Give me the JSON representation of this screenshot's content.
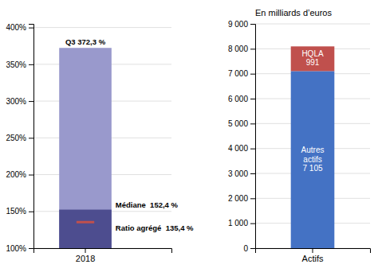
{
  "chart_data": [
    {
      "type": "bar",
      "categories": [
        "2018"
      ],
      "ylim": [
        100,
        405
      ],
      "yticks": [
        {
          "value": 100,
          "label": "100%"
        },
        {
          "value": 150,
          "label": "150%"
        },
        {
          "value": 200,
          "label": "200%"
        },
        {
          "value": 250,
          "label": "250%"
        },
        {
          "value": 300,
          "label": "300%"
        },
        {
          "value": 350,
          "label": "350%"
        },
        {
          "value": 400,
          "label": "400%"
        }
      ],
      "grid": true,
      "data_labels": true,
      "series": [
        {
          "color": "#9999cc",
          "values": [
            372.3
          ],
          "value_labels": [
            "Q3 372,3 %"
          ]
        },
        {
          "color": "#4d4d8f",
          "values": [
            152.4
          ],
          "value_labels": [
            "Médiane  152,4 %"
          ]
        },
        {
          "type": "scatter",
          "marker": "dash",
          "color": "#c0504d",
          "values": [
            135.4
          ],
          "value_labels": [
            "Ratio agrégé  135,4 %"
          ]
        }
      ]
    },
    {
      "type": "bar",
      "title": "En milliards d’euros",
      "categories": [
        "Actifs"
      ],
      "ylim": [
        0,
        9000
      ],
      "yticks": [
        0,
        {
          "value": 1000,
          "label": "1 000"
        },
        {
          "value": 2000,
          "label": "2 000"
        },
        {
          "value": 3000,
          "label": "3 000"
        },
        {
          "value": 4000,
          "label": "4 000"
        },
        {
          "value": 5000,
          "label": "5 000"
        },
        {
          "value": 6000,
          "label": "6 000"
        },
        {
          "value": 7000,
          "label": "7 000"
        },
        {
          "value": 8000,
          "label": "8 000"
        },
        {
          "value": 9000,
          "label": "9 000"
        }
      ],
      "grid": true,
      "stacked": true,
      "data_labels": true,
      "series": [
        {
          "name": "Autres\nactifs",
          "color": "#4472c4",
          "values": [
            7105
          ],
          "value_labels": [
            "7 105"
          ]
        },
        {
          "name": "HQLA",
          "color": "#c0504d",
          "values": [
            991
          ]
        }
      ]
    }
  ]
}
